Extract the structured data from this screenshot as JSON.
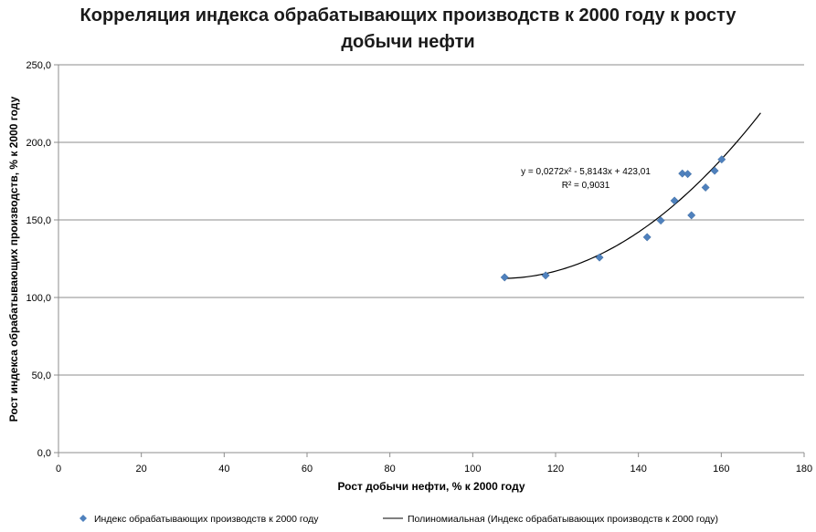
{
  "chart_data": {
    "type": "scatter",
    "title_line1": "Корреляция индекса обрабатывающих производств к 2000 году к росту",
    "title_line2": "добычи нефти",
    "xlabel": "Рост добычи нефти, % к 2000  году",
    "ylabel": "Рост индекса обрабатывающих  производств, % к 2000  году",
    "xlim": [
      0,
      180
    ],
    "ylim": [
      0,
      250
    ],
    "x_ticks": [
      0,
      20,
      40,
      60,
      80,
      100,
      120,
      140,
      160,
      180
    ],
    "y_ticks": [
      0,
      50,
      100,
      150,
      200,
      250
    ],
    "x_tick_labels": [
      "0",
      "20",
      "40",
      "60",
      "80",
      "100",
      "120",
      "140",
      "160",
      "180"
    ],
    "y_tick_labels": [
      "0,0",
      "50,0",
      "100,0",
      "150,0",
      "200,0",
      "250,0"
    ],
    "grid": "horizontal",
    "series": [
      {
        "name": "Индекс обрабатывающих производств к 2000 году",
        "marker": "diamond",
        "color": "#4F81BD",
        "x": [
          107.7,
          117.6,
          130.6,
          142.1,
          145.4,
          148.7,
          150.6,
          151.9,
          152.8,
          156.2,
          158.4,
          160.1
        ],
        "y": [
          113.0,
          114.2,
          125.8,
          138.9,
          149.6,
          162.4,
          179.9,
          179.6,
          153.0,
          170.9,
          181.7,
          189.0
        ]
      }
    ],
    "trendline": {
      "name": "Полиномиальная (Индекс обрабатывающих производств к 2000 году)",
      "type": "polynomial",
      "coefficients": [
        0.0272,
        -5.8143,
        423.01
      ],
      "x_range": [
        107.7,
        169.5
      ],
      "color": "#000000",
      "equation": "y = 0,0272x² - 5,8143x + 423,01",
      "r_squared": "R² = 0,9031"
    },
    "legend_position": "bottom"
  }
}
